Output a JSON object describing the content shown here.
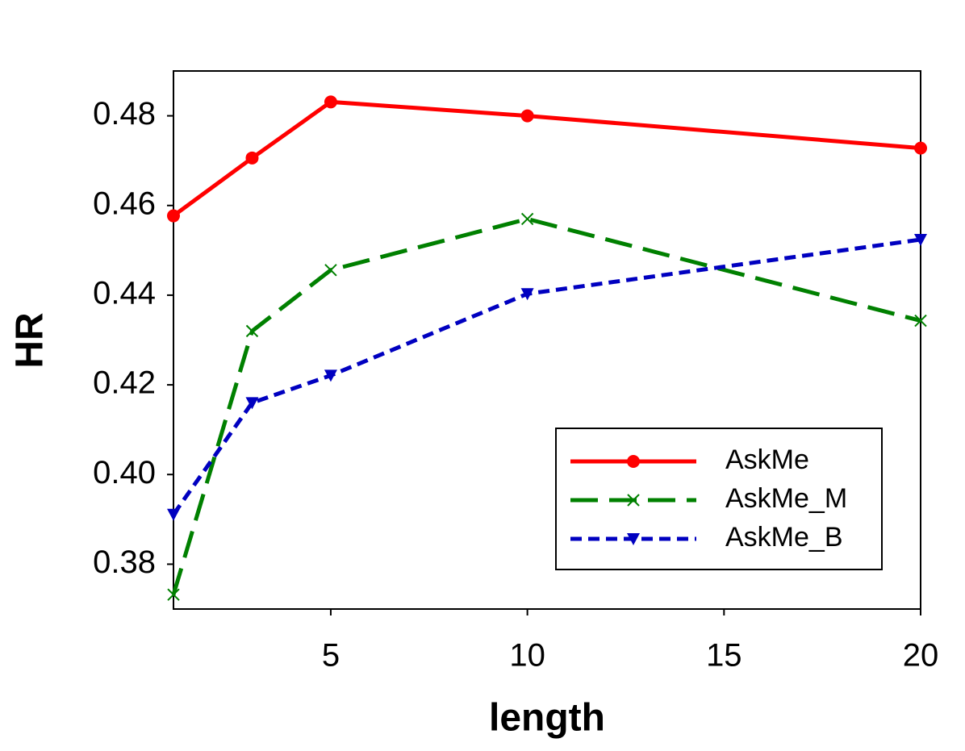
{
  "chart_data": {
    "type": "line",
    "x_label": "length",
    "y_label": "HR",
    "x": [
      1,
      3,
      5,
      10,
      20
    ],
    "series": [
      {
        "name": "AskMe",
        "color": "#ff0000",
        "marker": "circle",
        "linestyle": "solid",
        "values": [
          0.4577,
          0.4706,
          0.4831,
          0.48,
          0.4728
        ]
      },
      {
        "name": "AskMe_M",
        "color": "#008000",
        "marker": "x",
        "linestyle": "dashed",
        "values": [
          0.3732,
          0.432,
          0.4456,
          0.457,
          0.4343
        ]
      },
      {
        "name": "AskMe_B",
        "color": "#0000c0",
        "marker": "triangle-down",
        "linestyle": "dotted",
        "values": [
          0.3911,
          0.416,
          0.4221,
          0.4403,
          0.4524
        ]
      }
    ],
    "xlim": [
      1,
      20
    ],
    "xticks": [
      5,
      10,
      15,
      20
    ],
    "ylim": [
      0.37,
      0.49
    ],
    "yticks": [
      0.38,
      {
        "value": 0.4,
        "label": "0.40"
      },
      0.42,
      0.44,
      0.46,
      0.48
    ],
    "legend": "lower right"
  }
}
